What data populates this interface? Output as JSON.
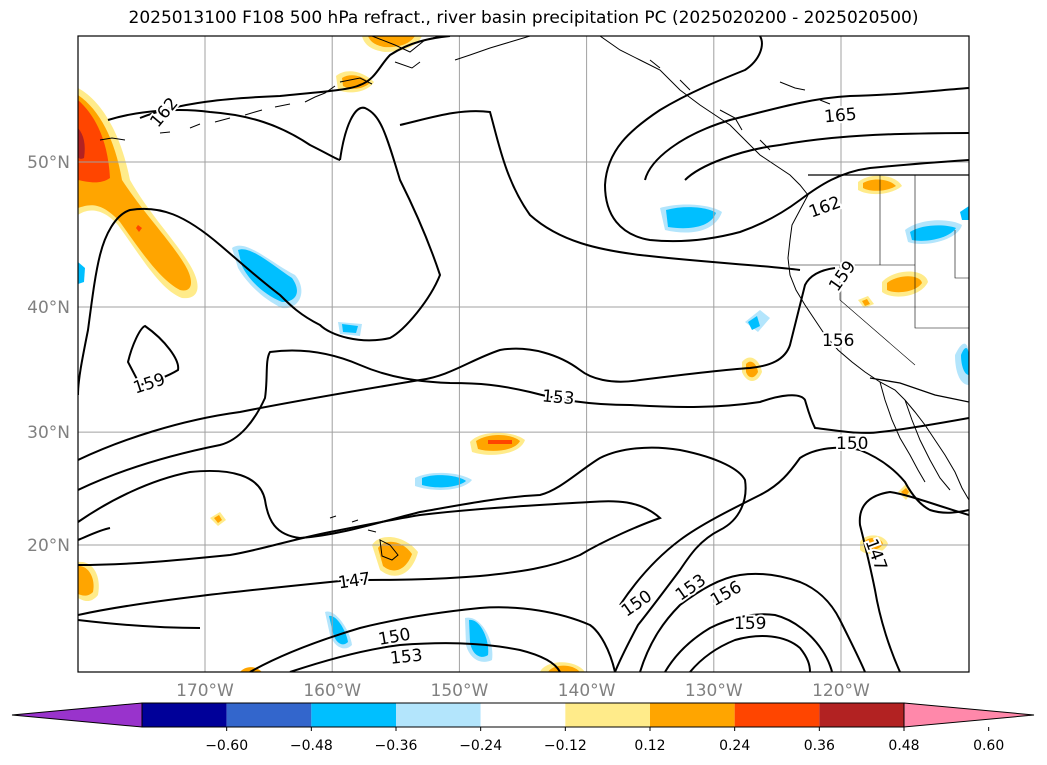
{
  "title": "2025013100 F108 500 hPa refract., river basin precipitation PC (2025020200 - 2025020500)",
  "colors": {
    "contour": "#000000",
    "grid": "#a0a0a0",
    "tick_text": "#808080"
  },
  "map": {
    "lat_ticks": [
      {
        "value": 50,
        "label": "50°N"
      },
      {
        "value": 40,
        "label": "40°N"
      },
      {
        "value": 30,
        "label": "30°N"
      },
      {
        "value": 20,
        "label": "20°N"
      }
    ],
    "lon_ticks": [
      {
        "value": -170,
        "label": "170°W"
      },
      {
        "value": -160,
        "label": "160°W"
      },
      {
        "value": -150,
        "label": "150°W"
      },
      {
        "value": -140,
        "label": "140°W"
      },
      {
        "value": -130,
        "label": "130°W"
      },
      {
        "value": -120,
        "label": "120°W"
      }
    ],
    "contour_labels": [
      "162",
      "165",
      "162",
      "159",
      "156",
      "159",
      "153",
      "150",
      "147",
      "147",
      "150",
      "150",
      "153",
      "153",
      "156",
      "159"
    ]
  },
  "colorbar": {
    "colors": [
      "#9933cc",
      "#000099",
      "#3366cc",
      "#00bfff",
      "#b3e5fc",
      "#ffffff",
      "#ffeb8a",
      "#ffa500",
      "#ff4500",
      "#b22222",
      "#ff88aa"
    ],
    "labels": [
      "−0.60",
      "−0.48",
      "−0.36",
      "−0.24",
      "−0.12",
      "0.12",
      "0.24",
      "0.36",
      "0.48",
      "0.60"
    ]
  }
}
